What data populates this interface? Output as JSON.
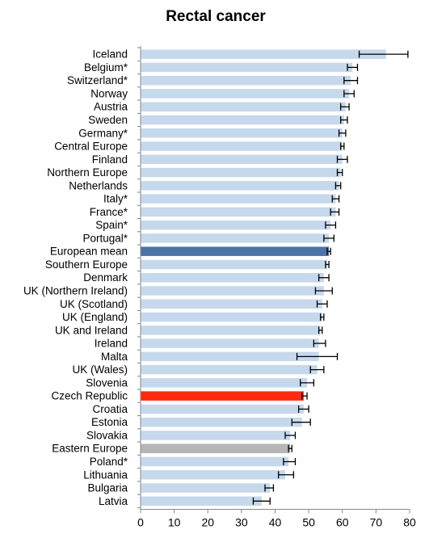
{
  "chart_data": {
    "type": "bar",
    "orientation": "horizontal",
    "title": "Rectal cancer",
    "xlabel": "",
    "ylabel": "",
    "xlim": [
      0,
      80
    ],
    "xticks": [
      0,
      10,
      20,
      30,
      40,
      50,
      60,
      70,
      80
    ],
    "grid": false,
    "legend": "none",
    "colors": {
      "default": "#c6d8ec",
      "European mean": "#4a74a8",
      "Czech Republic": "#ff2a10",
      "Eastern Europe": "#b5b5b5",
      "error_bar": "#000000",
      "axis": "#888888"
    },
    "categories": [
      "Iceland",
      "Belgium*",
      "Switzerland*",
      "Norway",
      "Austria",
      "Sweden",
      "Germany*",
      "Central Europe",
      "Finland",
      "Northern Europe",
      "Netherlands",
      "Italy*",
      "France*",
      "Spain*",
      "Portugal*",
      "European mean",
      "Southern Europe",
      "Denmark",
      "UK (Northern Ireland)",
      "UK (Scotland)",
      "UK (England)",
      "UK and Ireland",
      "Ireland",
      "Malta",
      "UK (Wales)",
      "Slovenia",
      "Czech Republic",
      "Croatia",
      "Estonia",
      "Slovakia",
      "Eastern Europe",
      "Poland*",
      "Lithuania",
      "Bulgaria",
      "Latvia"
    ],
    "values": [
      73.0,
      63.0,
      62.5,
      62.0,
      61.0,
      60.5,
      60.0,
      60.0,
      60.0,
      59.5,
      59.0,
      58.0,
      58.0,
      56.5,
      56.0,
      56.0,
      55.5,
      54.5,
      54.5,
      54.0,
      54.0,
      53.5,
      53.0,
      53.0,
      52.5,
      49.5,
      48.5,
      48.5,
      48.0,
      44.5,
      44.5,
      44.0,
      43.0,
      38.5,
      36.0
    ],
    "ci_low": [
      65.0,
      61.5,
      60.5,
      60.5,
      59.5,
      59.5,
      59.0,
      59.5,
      58.5,
      58.5,
      58.0,
      57.0,
      56.5,
      55.0,
      54.5,
      55.5,
      55.0,
      53.0,
      52.0,
      52.5,
      53.5,
      53.0,
      51.5,
      46.5,
      50.5,
      47.5,
      48.0,
      47.0,
      45.0,
      43.0,
      44.0,
      42.5,
      41.0,
      37.0,
      33.5
    ],
    "ci_high": [
      79.5,
      64.5,
      64.5,
      63.5,
      62.0,
      61.5,
      61.0,
      60.5,
      61.5,
      60.0,
      59.5,
      59.0,
      59.0,
      58.0,
      57.5,
      56.5,
      56.0,
      56.0,
      57.0,
      55.5,
      54.5,
      54.0,
      55.0,
      58.5,
      54.5,
      51.5,
      49.5,
      50.0,
      50.5,
      46.0,
      45.0,
      46.0,
      45.5,
      39.5,
      38.5
    ]
  }
}
